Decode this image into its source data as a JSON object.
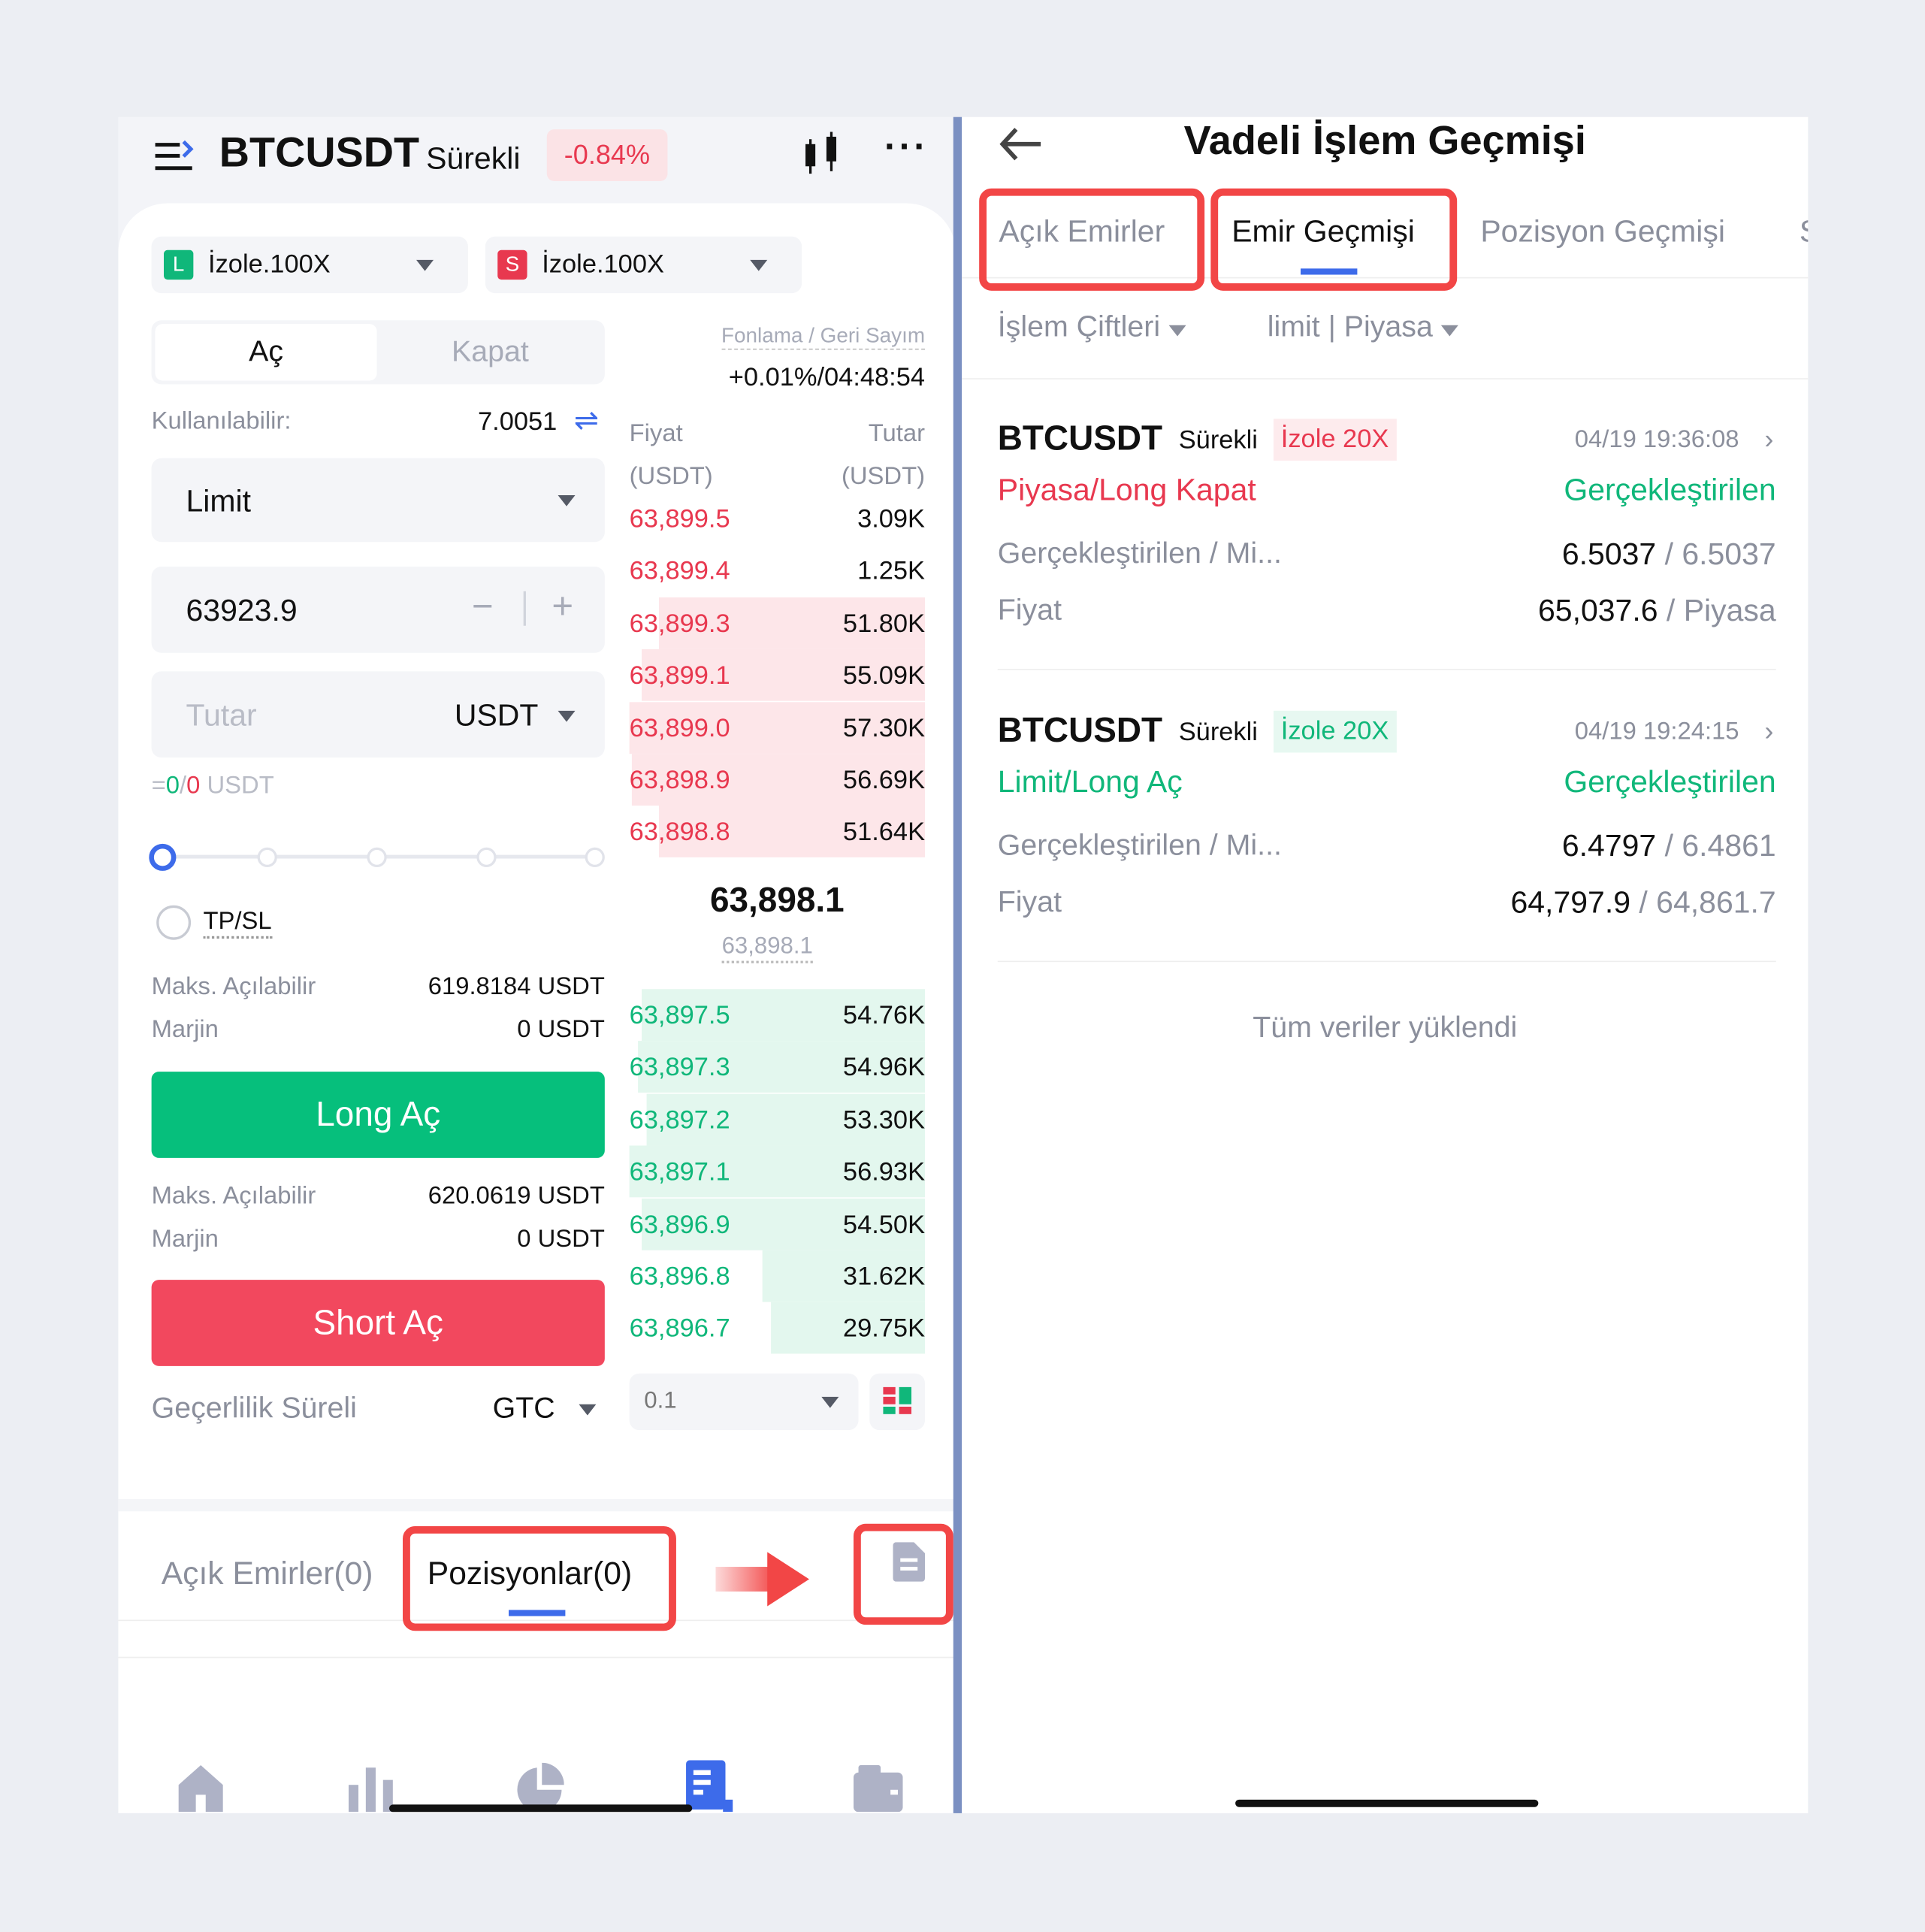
{
  "left": {
    "header": {
      "symbol": "BTCUSDT",
      "type": "Sürekli",
      "change": "-0.84%"
    },
    "leverage": [
      {
        "badge": "L",
        "label": "İzole.100X",
        "color": "#10b77a"
      },
      {
        "badge": "S",
        "label": "İzole.100X",
        "color": "#e8384f"
      }
    ],
    "tabs": {
      "open": "Aç",
      "close": "Kapat"
    },
    "funding": {
      "label": "Fonlama / Geri Sayım",
      "value": "+0.01%/04:48:54"
    },
    "available": {
      "label": "Kullanılabilir:",
      "value": "7.0051"
    },
    "order_type": "Limit",
    "price": "63923.9",
    "amount": {
      "placeholder": "Tutar",
      "unit": "USDT"
    },
    "equiv": {
      "prefix": "=",
      "long": "0",
      "sep": "/",
      "short": "0",
      "unit": "USDT"
    },
    "slider_percent": 0,
    "tpsl": "TP/SL",
    "long_info": {
      "max_label": "Maks. Açılabilir",
      "max_value": "619.8184 USDT",
      "margin_label": "Marjin",
      "margin_value": "0 USDT"
    },
    "long_button": "Long Aç",
    "short_info": {
      "max_label": "Maks. Açılabilir",
      "max_value": "620.0619 USDT",
      "margin_label": "Marjin",
      "margin_value": "0 USDT"
    },
    "short_button": "Short Aç",
    "validity": {
      "label": "Geçerlilik Süreli",
      "value": "GTC"
    },
    "orderbook": {
      "price_header": "Fiyat",
      "price_unit": "(USDT)",
      "amount_header": "Tutar",
      "amount_unit": "(USDT)",
      "asks": [
        {
          "price": "63,899.5",
          "amount": "3.09K",
          "depth": 0
        },
        {
          "price": "63,899.4",
          "amount": "1.25K",
          "depth": 0
        },
        {
          "price": "63,899.3",
          "amount": "51.80K",
          "depth": 0.9
        },
        {
          "price": "63,899.1",
          "amount": "55.09K",
          "depth": 0.96
        },
        {
          "price": "63,899.0",
          "amount": "57.30K",
          "depth": 1
        },
        {
          "price": "63,898.9",
          "amount": "56.69K",
          "depth": 0.99
        },
        {
          "price": "63,898.8",
          "amount": "51.64K",
          "depth": 0.9
        }
      ],
      "last_price": "63,898.1",
      "mark_price": "63,898.1",
      "bids": [
        {
          "price": "63,897.5",
          "amount": "54.76K",
          "depth": 0.96
        },
        {
          "price": "63,897.3",
          "amount": "54.96K",
          "depth": 0.97
        },
        {
          "price": "63,897.2",
          "amount": "53.30K",
          "depth": 0.94
        },
        {
          "price": "63,897.1",
          "amount": "56.93K",
          "depth": 1
        },
        {
          "price": "63,896.9",
          "amount": "54.50K",
          "depth": 0.96
        },
        {
          "price": "63,896.8",
          "amount": "31.62K",
          "depth": 0.55
        },
        {
          "price": "63,896.7",
          "amount": "29.75K",
          "depth": 0.52
        }
      ],
      "precision": "0.1"
    },
    "bottom_tabs": {
      "open_orders": "Açık Emirler(0)",
      "positions": "Pozisyonlar(0)"
    },
    "nav": [
      {
        "label": "Ana Sayfa",
        "icon": "home-icon"
      },
      {
        "label": "Piyasalar",
        "icon": "bar-chart-icon"
      },
      {
        "label": "Al-Sat",
        "icon": "pie-chart-icon"
      },
      {
        "label": "Vadeli",
        "icon": "futures-icon",
        "active": true
      },
      {
        "label": "Cüzdan",
        "icon": "wallet-icon"
      }
    ]
  },
  "right": {
    "title": "Vadeli İşlem Geçmişi",
    "tabs": [
      "Açık Emirler",
      "Emir Geçmişi",
      "Pozisyon Geçmişi",
      "S"
    ],
    "active_tab": 1,
    "filters": {
      "pairs": "İşlem Çiftleri",
      "type": "limit | Piyasa"
    },
    "orders": [
      {
        "symbol": "BTCUSDT",
        "type": "Sürekli",
        "margin": "İzole 20X",
        "margin_color": "#e8384f",
        "time": "04/19 19:36:08",
        "side": "Piyasa/Long Kapat",
        "side_color": "#e8384f",
        "status": "Gerçekleştirilen",
        "filled_label": "Gerçekleştirilen / Mi...",
        "filled": "6.5037",
        "filled_total": "6.5037",
        "price_label": "Fiyat",
        "price": "65,037.6",
        "price_ref": "Piyasa"
      },
      {
        "symbol": "BTCUSDT",
        "type": "Sürekli",
        "margin": "İzole 20X",
        "margin_color": "#10b77a",
        "time": "04/19 19:24:15",
        "side": "Limit/Long Aç",
        "side_color": "#10b77a",
        "status": "Gerçekleştirilen",
        "filled_label": "Gerçekleştirilen / Mi...",
        "filled": "6.4797",
        "filled_total": "6.4861",
        "price_label": "Fiyat",
        "price": "64,797.9",
        "price_ref": "64,861.7"
      }
    ],
    "footer": "Tüm veriler yüklendi"
  }
}
